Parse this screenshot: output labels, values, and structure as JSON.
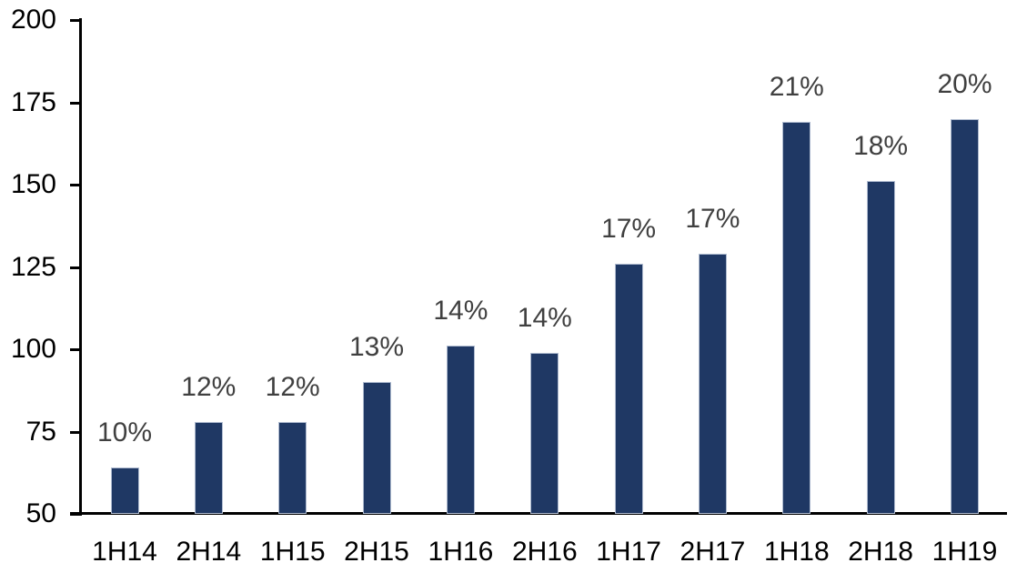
{
  "chart_data": {
    "type": "bar",
    "categories": [
      "1H14",
      "2H14",
      "1H15",
      "2H15",
      "1H16",
      "2H16",
      "1H17",
      "2H17",
      "1H18",
      "2H18",
      "1H19"
    ],
    "values": [
      64,
      78,
      78,
      90,
      101,
      99,
      126,
      129,
      169,
      151,
      170
    ],
    "data_labels": [
      "10%",
      "12%",
      "12%",
      "13%",
      "14%",
      "14%",
      "17%",
      "17%",
      "21%",
      "18%",
      "20%"
    ],
    "title": "",
    "xlabel": "",
    "ylabel": "",
    "ylim": [
      50,
      200
    ],
    "yticks": [
      50,
      75,
      100,
      125,
      150,
      175,
      200
    ],
    "grid": false,
    "legend": "none",
    "colors": {
      "bar_fill": "#1F3864",
      "bar_border": "#AEBACF",
      "data_label": "#404040",
      "axis_line": "#000000",
      "tick_label": "#000000",
      "background": "#FFFFFF"
    }
  }
}
